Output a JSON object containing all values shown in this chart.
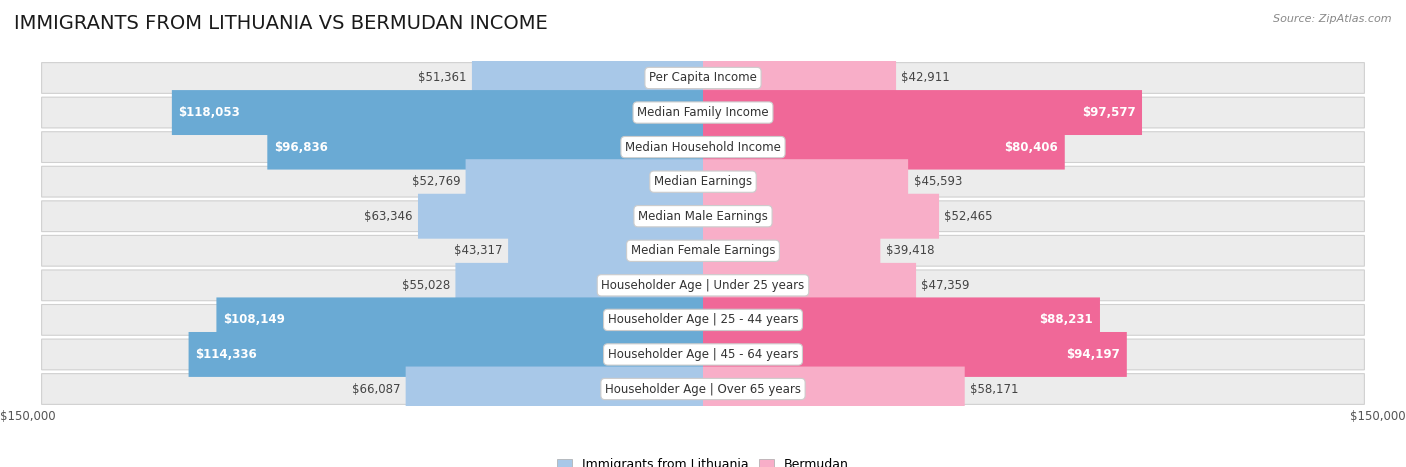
{
  "title": "IMMIGRANTS FROM LITHUANIA VS BERMUDAN INCOME",
  "source": "Source: ZipAtlas.com",
  "categories": [
    "Per Capita Income",
    "Median Family Income",
    "Median Household Income",
    "Median Earnings",
    "Median Male Earnings",
    "Median Female Earnings",
    "Householder Age | Under 25 years",
    "Householder Age | 25 - 44 years",
    "Householder Age | 45 - 64 years",
    "Householder Age | Over 65 years"
  ],
  "lithuania_values": [
    51361,
    118053,
    96836,
    52769,
    63346,
    43317,
    55028,
    108149,
    114336,
    66087
  ],
  "bermudan_values": [
    42911,
    97577,
    80406,
    45593,
    52465,
    39418,
    47359,
    88231,
    94197,
    58171
  ],
  "lith_color_light": "#a8c8e8",
  "lith_color_dark": "#6aaad4",
  "berm_color_light": "#f8aec8",
  "berm_color_dark": "#f06898",
  "background_color": "#ffffff",
  "row_bg_color": "#ececec",
  "max_value": 150000,
  "title_fontsize": 14,
  "label_fontsize": 8.5,
  "value_fontsize": 8.5,
  "inside_threshold_lith": 80000,
  "inside_threshold_berm": 70000,
  "legend_label_lithuania": "Immigrants from Lithuania",
  "legend_label_bermudan": "Bermudan"
}
